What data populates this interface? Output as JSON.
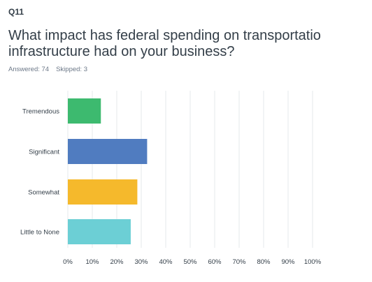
{
  "question": {
    "number": "Q11",
    "title_line1": "What impact has federal spending on transportatio",
    "title_line2": "infrastructure had on your business?"
  },
  "stats": {
    "answered_label": "Answered: 74",
    "skipped_label": "Skipped: 3"
  },
  "colors": {
    "text": "#333e48",
    "muted": "#6b7787",
    "grid": "#e6e8eb"
  },
  "chart_data": {
    "type": "bar",
    "orientation": "horizontal",
    "categories": [
      "Tremendous",
      "Significant",
      "Somewhat",
      "Little to None"
    ],
    "values": [
      13.5,
      32.4,
      28.4,
      25.7
    ],
    "colors": [
      "#3dba6f",
      "#507cc0",
      "#f5b92c",
      "#6ccfd5"
    ],
    "xlim": [
      0,
      100
    ],
    "xticks": [
      "0%",
      "10%",
      "20%",
      "30%",
      "40%",
      "50%",
      "60%",
      "70%",
      "80%",
      "90%",
      "100%"
    ],
    "grid": true
  }
}
